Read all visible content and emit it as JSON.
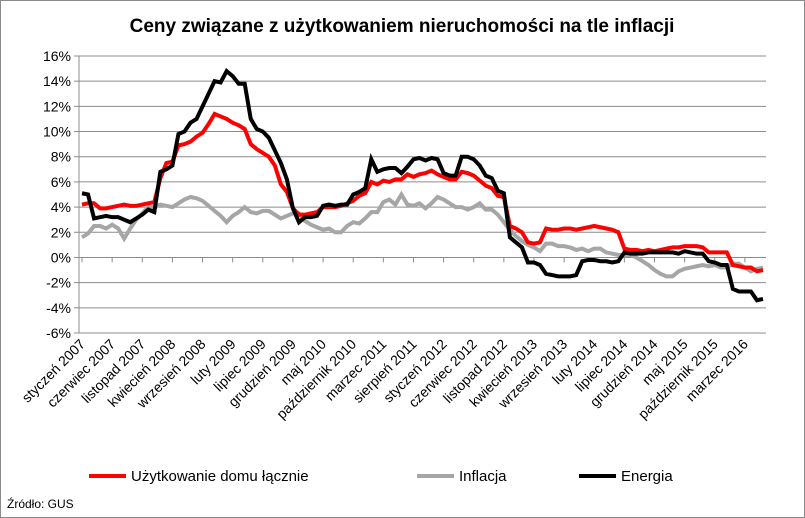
{
  "chart_data": {
    "type": "line",
    "title": "Ceny związane z użytkowaniem nieruchomości na tle inflacji",
    "xlabel": "",
    "ylabel": "",
    "ylim": [
      -6,
      16
    ],
    "y_ticks": [
      -6,
      -4,
      -2,
      0,
      2,
      4,
      6,
      8,
      10,
      12,
      14,
      16
    ],
    "y_tick_labels": [
      "-6%",
      "-4%",
      "-2%",
      "0%",
      "2%",
      "4%",
      "6%",
      "8%",
      "10%",
      "12%",
      "14%",
      "16%"
    ],
    "x_tick_labels": [
      {
        "index": 0,
        "label": "styczeń 2007"
      },
      {
        "index": 5,
        "label": "czerwiec 2007"
      },
      {
        "index": 10,
        "label": "listopad 2007"
      },
      {
        "index": 15,
        "label": "kwiecień 2008"
      },
      {
        "index": 20,
        "label": "wrzesień 2008"
      },
      {
        "index": 25,
        "label": "luty 2009"
      },
      {
        "index": 30,
        "label": "lipiec 2009"
      },
      {
        "index": 35,
        "label": "grudzień 2009"
      },
      {
        "index": 40,
        "label": "maj 2010"
      },
      {
        "index": 45,
        "label": "październik 2010"
      },
      {
        "index": 50,
        "label": "marzec 2011"
      },
      {
        "index": 55,
        "label": "sierpień 2011"
      },
      {
        "index": 60,
        "label": "styczeń 2012"
      },
      {
        "index": 65,
        "label": "czerwiec 2012"
      },
      {
        "index": 70,
        "label": "listopad 2012"
      },
      {
        "index": 75,
        "label": "kwiecień 2013"
      },
      {
        "index": 80,
        "label": "wrzesień 2013"
      },
      {
        "index": 85,
        "label": "luty 2014"
      },
      {
        "index": 90,
        "label": "lipiec 2014"
      },
      {
        "index": 95,
        "label": "grudzień 2014"
      },
      {
        "index": 100,
        "label": "maj 2015"
      },
      {
        "index": 105,
        "label": "październik 2015"
      },
      {
        "index": 110,
        "label": "marzec 2016"
      }
    ],
    "grid": "horizontal",
    "legend_position": "bottom",
    "series": [
      {
        "name": "Użytkowanie domu łącznie",
        "color": "#ff0000",
        "values": [
          4.2,
          4.3,
          4.3,
          3.9,
          3.9,
          4.0,
          4.1,
          4.2,
          4.1,
          4.1,
          4.2,
          4.3,
          4.4,
          6.3,
          7.5,
          7.6,
          8.9,
          9.0,
          9.2,
          9.6,
          9.9,
          10.6,
          11.4,
          11.2,
          11.0,
          10.7,
          10.5,
          10.2,
          9.0,
          8.6,
          8.3,
          8.0,
          7.3,
          5.8,
          5.2,
          3.9,
          3.4,
          3.4,
          3.5,
          3.6,
          4.0,
          4.0,
          4.0,
          4.1,
          4.3,
          4.5,
          4.9,
          5.1,
          6.0,
          5.8,
          6.1,
          6.0,
          6.2,
          6.2,
          6.6,
          6.4,
          6.6,
          6.7,
          6.9,
          6.6,
          6.4,
          6.2,
          6.2,
          6.8,
          6.7,
          6.5,
          6.1,
          5.7,
          5.5,
          4.9,
          4.8,
          2.5,
          2.3,
          2.0,
          1.2,
          1.1,
          1.2,
          2.3,
          2.2,
          2.2,
          2.3,
          2.3,
          2.2,
          2.3,
          2.4,
          2.5,
          2.4,
          2.3,
          2.2,
          2.0,
          0.7,
          0.6,
          0.6,
          0.5,
          0.6,
          0.5,
          0.6,
          0.7,
          0.8,
          0.8,
          0.9,
          0.9,
          0.9,
          0.8,
          0.4,
          0.4,
          0.4,
          0.4,
          -0.6,
          -0.7,
          -0.8,
          -0.8,
          -1.1,
          -1.0
        ]
      },
      {
        "name": "Inflacja",
        "color": "#a6a6a6",
        "values": [
          1.6,
          1.9,
          2.5,
          2.5,
          2.3,
          2.6,
          2.3,
          1.5,
          2.3,
          3.0,
          3.5,
          4.0,
          4.0,
          4.2,
          4.1,
          4.0,
          4.3,
          4.6,
          4.8,
          4.7,
          4.5,
          4.1,
          3.7,
          3.3,
          2.8,
          3.3,
          3.6,
          4.0,
          3.6,
          3.5,
          3.7,
          3.7,
          3.4,
          3.1,
          3.3,
          3.5,
          3.5,
          2.9,
          2.6,
          2.4,
          2.2,
          2.3,
          2.0,
          2.0,
          2.5,
          2.8,
          2.7,
          3.1,
          3.6,
          3.6,
          4.4,
          4.6,
          4.2,
          5.0,
          4.2,
          4.1,
          4.3,
          3.9,
          4.3,
          4.8,
          4.6,
          4.3,
          4.0,
          4.0,
          3.8,
          4.0,
          4.3,
          3.8,
          3.8,
          3.4,
          2.8,
          2.2,
          1.7,
          1.3,
          1.0,
          0.8,
          0.5,
          1.1,
          1.1,
          0.9,
          0.9,
          0.8,
          0.6,
          0.7,
          0.5,
          0.7,
          0.7,
          0.4,
          0.3,
          0.2,
          0.2,
          0.2,
          0.0,
          -0.3,
          -0.6,
          -1.0,
          -1.3,
          -1.5,
          -1.5,
          -1.1,
          -0.9,
          -0.8,
          -0.7,
          -0.6,
          -0.7,
          -0.6,
          -0.8,
          -0.8,
          -0.5,
          -0.5,
          -0.8,
          -1.1,
          -0.9,
          -0.8
        ]
      },
      {
        "name": "Energia",
        "color": "#000000",
        "values": [
          5.1,
          5.0,
          3.1,
          3.2,
          3.3,
          3.2,
          3.2,
          3.0,
          2.8,
          3.1,
          3.4,
          3.8,
          3.6,
          6.8,
          7.0,
          7.3,
          9.8,
          10.0,
          10.7,
          11.0,
          12.0,
          13.0,
          14.0,
          13.9,
          14.8,
          14.4,
          13.8,
          13.8,
          11.0,
          10.2,
          10.0,
          9.5,
          8.5,
          7.5,
          6.2,
          3.9,
          2.8,
          3.2,
          3.2,
          3.3,
          4.1,
          4.2,
          4.1,
          4.2,
          4.2,
          5.0,
          5.2,
          5.5,
          7.8,
          6.8,
          7.0,
          7.1,
          7.1,
          6.7,
          7.2,
          7.8,
          7.9,
          7.7,
          7.9,
          7.8,
          6.7,
          6.5,
          6.5,
          8.0,
          8.0,
          7.8,
          7.3,
          6.5,
          6.3,
          5.3,
          5.1,
          1.6,
          1.2,
          0.8,
          -0.4,
          -0.4,
          -0.6,
          -1.3,
          -1.4,
          -1.5,
          -1.5,
          -1.5,
          -1.4,
          -0.3,
          -0.2,
          -0.2,
          -0.3,
          -0.3,
          -0.4,
          -0.3,
          0.4,
          0.3,
          0.3,
          0.3,
          0.4,
          0.4,
          0.4,
          0.4,
          0.4,
          0.3,
          0.5,
          0.4,
          0.3,
          0.3,
          -0.3,
          -0.4,
          -0.6,
          -0.6,
          -2.5,
          -2.7,
          -2.7,
          -2.7,
          -3.4,
          -3.3
        ]
      }
    ]
  },
  "source": "Źródło: GUS"
}
